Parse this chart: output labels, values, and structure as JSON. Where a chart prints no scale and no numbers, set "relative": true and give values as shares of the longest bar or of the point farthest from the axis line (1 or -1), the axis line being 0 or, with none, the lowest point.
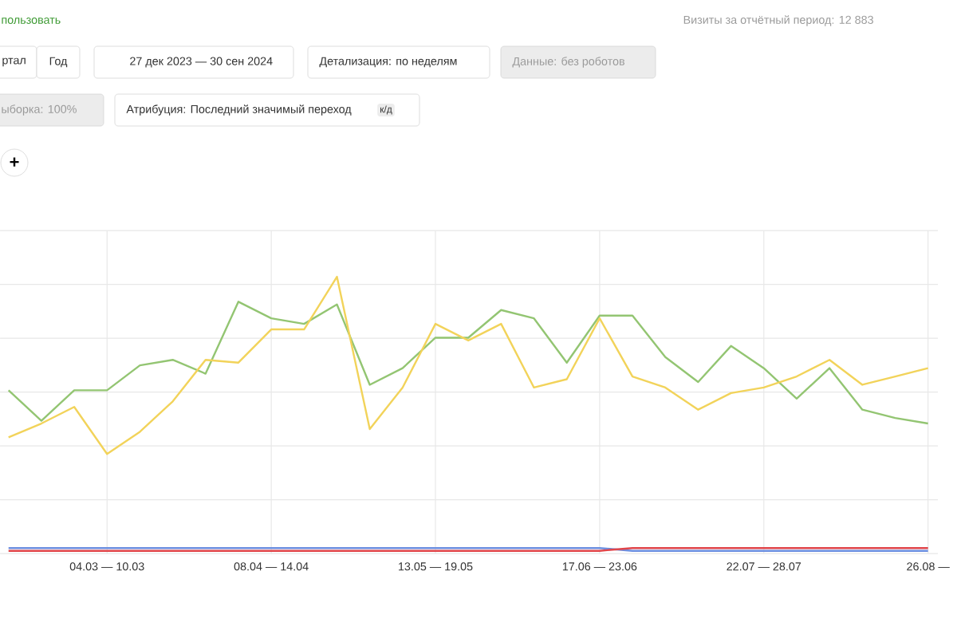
{
  "chart_data": {
    "type": "line",
    "relative": true,
    "grid": true,
    "categories": [
      null,
      null,
      null,
      "04.03 — 10.03",
      null,
      null,
      null,
      null,
      "08.04 — 14.04",
      null,
      null,
      null,
      null,
      "13.05 — 19.05",
      null,
      null,
      null,
      null,
      "17.06 — 23.06",
      null,
      null,
      null,
      null,
      "22.07 — 28.07",
      null,
      null,
      null,
      null,
      "26.08 —"
    ],
    "series": [
      {
        "color": "#93c572",
        "values": [
          0.59,
          0.48,
          0.59,
          0.59,
          0.68,
          0.7,
          0.65,
          0.91,
          0.85,
          0.83,
          0.9,
          0.61,
          0.67,
          0.78,
          0.78,
          0.88,
          0.85,
          0.69,
          0.86,
          0.86,
          0.71,
          0.62,
          0.75,
          0.67,
          0.56,
          0.67,
          0.52,
          0.49,
          0.47
        ]
      },
      {
        "color": "#f2d35a",
        "values": [
          0.42,
          0.47,
          0.53,
          0.36,
          0.44,
          0.55,
          0.7,
          0.69,
          0.81,
          0.81,
          1,
          0.45,
          0.6,
          0.83,
          0.77,
          0.83,
          0.6,
          0.63,
          0.85,
          0.64,
          0.6,
          0.52,
          0.58,
          0.6,
          0.64,
          0.7,
          0.61,
          0.64,
          0.67
        ]
      },
      {
        "color": "#6d8fe0",
        "values": [
          0.02,
          0.02,
          0.02,
          0.02,
          0.02,
          0.02,
          0.02,
          0.02,
          0.02,
          0.02,
          0.02,
          0.02,
          0.02,
          0.02,
          0.02,
          0.02,
          0.02,
          0.02,
          0.02,
          0.01,
          0.01,
          0.01,
          0.01,
          0.01,
          0.01,
          0.01,
          0.01,
          0.01,
          0.01
        ]
      },
      {
        "color": "#e0454a",
        "values": [
          0.01,
          0.01,
          0.01,
          0.01,
          0.01,
          0.01,
          0.01,
          0.01,
          0.01,
          0.01,
          0.01,
          0.01,
          0.01,
          0.01,
          0.01,
          0.01,
          0.01,
          0.01,
          0.01,
          0.02,
          0.02,
          0.02,
          0.02,
          0.02,
          0.02,
          0.02,
          0.02,
          0.02,
          0.02
        ]
      }
    ],
    "annotations": [
      "пользовать",
      "Визиты за отчётный период: 12 883",
      "ртал",
      "Год",
      "27 дек 2023 — 30 сен 2024",
      "Детализация: по неделям",
      "Данные: без роботов",
      "ыборка: 100%",
      "Атрибуция: Последний значимый переход",
      "к/д",
      "+"
    ]
  }
}
